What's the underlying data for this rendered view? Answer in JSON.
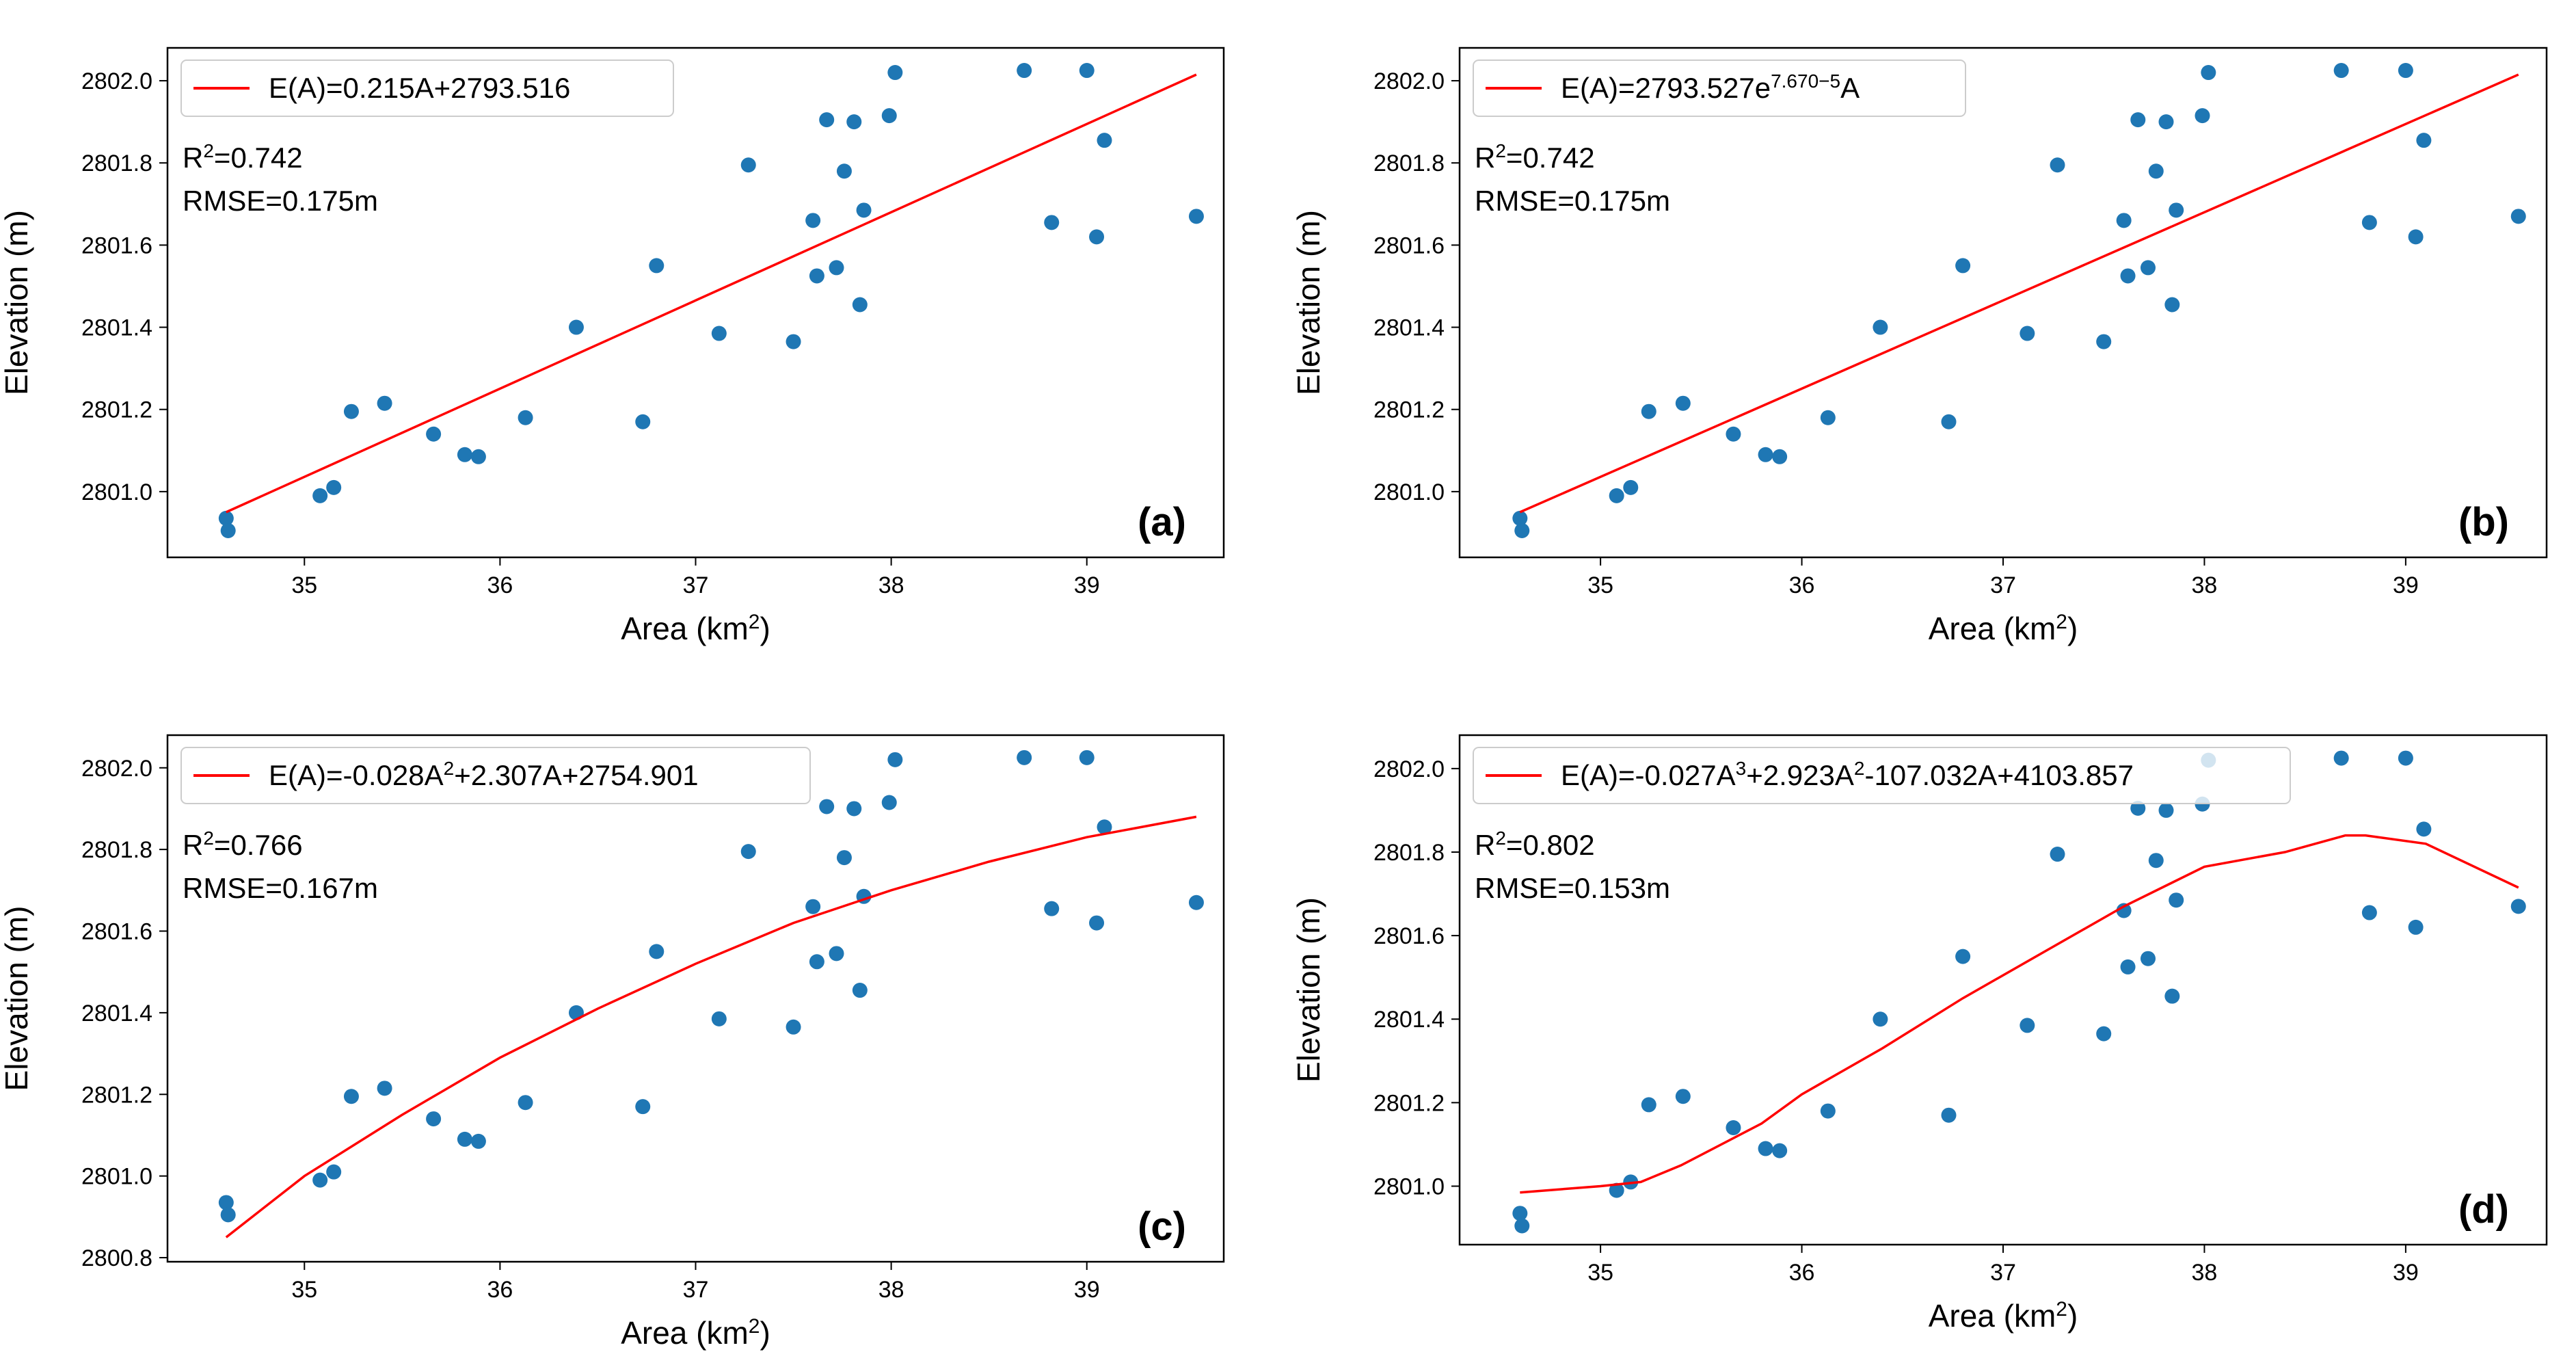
{
  "chart_data": [
    {
      "type": "scatter",
      "panel_label": "(a)",
      "xlabel": "Area (km",
      "xlabel_sup": "2",
      "xlabel_tail": ")",
      "ylabel": "Elevation (m)",
      "xlim": [
        34.3,
        39.7
      ],
      "ylim": [
        2800.84,
        2802.08
      ],
      "xticks": [
        35,
        36,
        37,
        38,
        39
      ],
      "yticks": [
        2801.0,
        2801.2,
        2801.4,
        2801.6,
        2801.8,
        2802.0
      ],
      "legend_location": "top-left",
      "legend": {
        "color": "#ff0000",
        "segments": [
          {
            "text": "E(A)=0.215A+2793.516",
            "sup": false
          }
        ]
      },
      "stats": {
        "r2_prefix": "R",
        "r2_sup": "2",
        "r2_value": "=0.742",
        "rmse": "RMSE=0.175m"
      },
      "fit_type": "linear",
      "fit_coefficients": [
        0.215,
        2793.516
      ],
      "series": [
        {
          "color": "#1f77b4",
          "points": [
            [
              34.6,
              2800.935
            ],
            [
              34.61,
              2800.905
            ],
            [
              35.08,
              2800.99
            ],
            [
              35.15,
              2801.01
            ],
            [
              35.24,
              2801.195
            ],
            [
              35.41,
              2801.215
            ],
            [
              35.66,
              2801.14
            ],
            [
              35.82,
              2801.09
            ],
            [
              35.89,
              2801.085
            ],
            [
              36.13,
              2801.18
            ],
            [
              36.39,
              2801.4
            ],
            [
              36.73,
              2801.17
            ],
            [
              36.8,
              2801.55
            ],
            [
              37.12,
              2801.385
            ],
            [
              37.27,
              2801.795
            ],
            [
              37.5,
              2801.365
            ],
            [
              37.6,
              2801.66
            ],
            [
              37.62,
              2801.525
            ],
            [
              37.67,
              2801.905
            ],
            [
              37.72,
              2801.545
            ],
            [
              37.76,
              2801.78
            ],
            [
              37.81,
              2801.9
            ],
            [
              37.84,
              2801.455
            ],
            [
              37.86,
              2801.685
            ],
            [
              37.99,
              2801.915
            ],
            [
              38.02,
              2802.02
            ],
            [
              38.68,
              2802.025
            ],
            [
              38.82,
              2801.655
            ],
            [
              39.0,
              2802.025
            ],
            [
              39.05,
              2801.62
            ],
            [
              39.09,
              2801.855
            ],
            [
              39.56,
              2801.67
            ]
          ]
        },
        {
          "color": "#ff0000",
          "kind": "fit-line",
          "points": [
            [
              34.6,
              2800.95
            ],
            [
              39.56,
              2802.015
            ]
          ]
        }
      ]
    },
    {
      "type": "scatter",
      "panel_label": "(b)",
      "xlabel": "Area (km",
      "xlabel_sup": "2",
      "xlabel_tail": ")",
      "ylabel": "Elevation (m)",
      "xlim": [
        34.3,
        39.7
      ],
      "ylim": [
        2800.84,
        2802.08
      ],
      "xticks": [
        35,
        36,
        37,
        38,
        39
      ],
      "yticks": [
        2801.0,
        2801.2,
        2801.4,
        2801.6,
        2801.8,
        2802.0
      ],
      "legend_location": "top-left",
      "legend": {
        "color": "#ff0000",
        "segments": [
          {
            "text": "E(A)=2793.527e",
            "sup": false
          },
          {
            "text": "7.670−5",
            "sup": true
          },
          {
            "text": "A",
            "sup": false
          }
        ]
      },
      "stats": {
        "r2_prefix": "R",
        "r2_sup": "2",
        "r2_value": "=0.742",
        "rmse": "RMSE=0.175m"
      },
      "fit_type": "exponential",
      "fit_coefficients": [
        2793.527,
        7.67e-05
      ],
      "series": [
        {
          "color": "#1f77b4",
          "points": [
            [
              34.6,
              2800.935
            ],
            [
              34.61,
              2800.905
            ],
            [
              35.08,
              2800.99
            ],
            [
              35.15,
              2801.01
            ],
            [
              35.24,
              2801.195
            ],
            [
              35.41,
              2801.215
            ],
            [
              35.66,
              2801.14
            ],
            [
              35.82,
              2801.09
            ],
            [
              35.89,
              2801.085
            ],
            [
              36.13,
              2801.18
            ],
            [
              36.39,
              2801.4
            ],
            [
              36.73,
              2801.17
            ],
            [
              36.8,
              2801.55
            ],
            [
              37.12,
              2801.385
            ],
            [
              37.27,
              2801.795
            ],
            [
              37.5,
              2801.365
            ],
            [
              37.6,
              2801.66
            ],
            [
              37.62,
              2801.525
            ],
            [
              37.67,
              2801.905
            ],
            [
              37.72,
              2801.545
            ],
            [
              37.76,
              2801.78
            ],
            [
              37.81,
              2801.9
            ],
            [
              37.84,
              2801.455
            ],
            [
              37.86,
              2801.685
            ],
            [
              37.99,
              2801.915
            ],
            [
              38.02,
              2802.02
            ],
            [
              38.68,
              2802.025
            ],
            [
              38.82,
              2801.655
            ],
            [
              39.0,
              2802.025
            ],
            [
              39.05,
              2801.62
            ],
            [
              39.09,
              2801.855
            ],
            [
              39.56,
              2801.67
            ]
          ]
        },
        {
          "color": "#ff0000",
          "kind": "fit-line",
          "points": [
            [
              34.6,
              2800.95
            ],
            [
              39.56,
              2802.015
            ]
          ]
        }
      ]
    },
    {
      "type": "scatter",
      "panel_label": "(c)",
      "xlabel": "Area (km",
      "xlabel_sup": "2",
      "xlabel_tail": ")",
      "ylabel": "Elevation (m)",
      "xlim": [
        34.3,
        39.7
      ],
      "ylim": [
        2800.79,
        2802.08
      ],
      "xticks": [
        35,
        36,
        37,
        38,
        39
      ],
      "yticks": [
        2800.8,
        2801.0,
        2801.2,
        2801.4,
        2801.6,
        2801.8,
        2802.0
      ],
      "legend_location": "top-left",
      "legend": {
        "color": "#ff0000",
        "segments": [
          {
            "text": "E(A)=-0.028A",
            "sup": false
          },
          {
            "text": "2",
            "sup": true
          },
          {
            "text": "+2.307A+2754.901",
            "sup": false
          }
        ]
      },
      "stats": {
        "r2_prefix": "R",
        "r2_sup": "2",
        "r2_value": "=0.766",
        "rmse": "RMSE=0.167m"
      },
      "fit_type": "quadratic",
      "fit_coefficients": [
        -0.028,
        2.307,
        2754.901
      ],
      "series": [
        {
          "color": "#1f77b4",
          "points": [
            [
              34.6,
              2800.935
            ],
            [
              34.61,
              2800.905
            ],
            [
              35.08,
              2800.99
            ],
            [
              35.15,
              2801.01
            ],
            [
              35.24,
              2801.195
            ],
            [
              35.41,
              2801.215
            ],
            [
              35.66,
              2801.14
            ],
            [
              35.82,
              2801.09
            ],
            [
              35.89,
              2801.085
            ],
            [
              36.13,
              2801.18
            ],
            [
              36.39,
              2801.4
            ],
            [
              36.73,
              2801.17
            ],
            [
              36.8,
              2801.55
            ],
            [
              37.12,
              2801.385
            ],
            [
              37.27,
              2801.795
            ],
            [
              37.5,
              2801.365
            ],
            [
              37.6,
              2801.66
            ],
            [
              37.62,
              2801.525
            ],
            [
              37.67,
              2801.905
            ],
            [
              37.72,
              2801.545
            ],
            [
              37.76,
              2801.78
            ],
            [
              37.81,
              2801.9
            ],
            [
              37.84,
              2801.455
            ],
            [
              37.86,
              2801.685
            ],
            [
              37.99,
              2801.915
            ],
            [
              38.02,
              2802.02
            ],
            [
              38.68,
              2802.025
            ],
            [
              38.82,
              2801.655
            ],
            [
              39.0,
              2802.025
            ],
            [
              39.05,
              2801.62
            ],
            [
              39.09,
              2801.855
            ],
            [
              39.56,
              2801.67
            ]
          ]
        },
        {
          "color": "#ff0000",
          "kind": "fit-line",
          "points": [
            [
              34.6,
              2800.85
            ],
            [
              35.0,
              2801.0
            ],
            [
              35.5,
              2801.15
            ],
            [
              36.0,
              2801.29
            ],
            [
              36.5,
              2801.41
            ],
            [
              37.0,
              2801.52
            ],
            [
              37.5,
              2801.62
            ],
            [
              38.0,
              2801.7
            ],
            [
              38.5,
              2801.77
            ],
            [
              39.0,
              2801.83
            ],
            [
              39.56,
              2801.88
            ]
          ]
        }
      ]
    },
    {
      "type": "scatter",
      "panel_label": "(d)",
      "xlabel": "Area (km",
      "xlabel_sup": "2",
      "xlabel_tail": ")",
      "ylabel": "Elevation (m)",
      "xlim": [
        34.3,
        39.7
      ],
      "ylim": [
        2800.86,
        2802.08
      ],
      "xticks": [
        35,
        36,
        37,
        38,
        39
      ],
      "yticks": [
        2801.0,
        2801.2,
        2801.4,
        2801.6,
        2801.8,
        2802.0
      ],
      "legend_location": "top-left",
      "legend": {
        "color": "#ff0000",
        "segments": [
          {
            "text": "E(A)=-0.027A",
            "sup": false
          },
          {
            "text": "3",
            "sup": true
          },
          {
            "text": "+2.923A",
            "sup": false
          },
          {
            "text": "2",
            "sup": true
          },
          {
            "text": "-107.032A+4103.857",
            "sup": false
          }
        ]
      },
      "stats": {
        "r2_prefix": "R",
        "r2_sup": "2",
        "r2_value": "=0.802",
        "rmse": "RMSE=0.153m"
      },
      "fit_type": "cubic",
      "fit_coefficients": [
        -0.027,
        2.923,
        -107.032,
        4103.857
      ],
      "series": [
        {
          "color": "#1f77b4",
          "points": [
            [
              34.6,
              2800.935
            ],
            [
              34.61,
              2800.905
            ],
            [
              35.08,
              2800.99
            ],
            [
              35.15,
              2801.01
            ],
            [
              35.24,
              2801.195
            ],
            [
              35.41,
              2801.215
            ],
            [
              35.66,
              2801.14
            ],
            [
              35.82,
              2801.09
            ],
            [
              35.89,
              2801.085
            ],
            [
              36.13,
              2801.18
            ],
            [
              36.39,
              2801.4
            ],
            [
              36.73,
              2801.17
            ],
            [
              36.8,
              2801.55
            ],
            [
              37.12,
              2801.385
            ],
            [
              37.27,
              2801.795
            ],
            [
              37.5,
              2801.365
            ],
            [
              37.6,
              2801.66
            ],
            [
              37.62,
              2801.525
            ],
            [
              37.67,
              2801.905
            ],
            [
              37.72,
              2801.545
            ],
            [
              37.76,
              2801.78
            ],
            [
              37.81,
              2801.9
            ],
            [
              37.84,
              2801.455
            ],
            [
              37.86,
              2801.685
            ],
            [
              37.99,
              2801.915
            ],
            [
              38.02,
              2802.02
            ],
            [
              38.68,
              2802.025
            ],
            [
              38.82,
              2801.655
            ],
            [
              39.0,
              2802.025
            ],
            [
              39.05,
              2801.62
            ],
            [
              39.09,
              2801.855
            ],
            [
              39.56,
              2801.67
            ]
          ]
        },
        {
          "color": "#ff0000",
          "kind": "fit-line",
          "points": [
            [
              34.6,
              2800.985
            ],
            [
              35.0,
              2801.0
            ],
            [
              35.2,
              2801.01
            ],
            [
              35.4,
              2801.05
            ],
            [
              35.8,
              2801.15
            ],
            [
              36.0,
              2801.22
            ],
            [
              36.4,
              2801.33
            ],
            [
              36.8,
              2801.45
            ],
            [
              37.2,
              2801.56
            ],
            [
              37.6,
              2801.67
            ],
            [
              38.0,
              2801.765
            ],
            [
              38.4,
              2801.8
            ],
            [
              38.7,
              2801.84
            ],
            [
              38.8,
              2801.84
            ],
            [
              39.1,
              2801.82
            ],
            [
              39.56,
              2801.715
            ]
          ]
        }
      ]
    }
  ]
}
